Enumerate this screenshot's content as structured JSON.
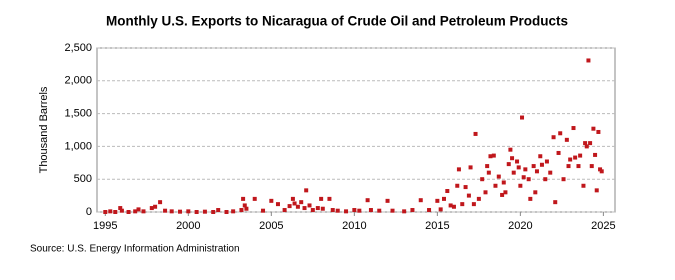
{
  "chart_data": {
    "type": "scatter",
    "title": "Monthly U.S. Exports to Nicaragua of Crude Oil and Petroleum Products",
    "y_label": "Thousand Barrels",
    "source": "Source: U.S. Energy Information Administration",
    "color": "#c0171c",
    "grid": true,
    "xlim": [
      1994.5,
      2025.7
    ],
    "ylim": [
      0,
      2500
    ],
    "xticks": [
      1995,
      2000,
      2005,
      2010,
      2015,
      2020,
      2025
    ],
    "yticks": [
      0,
      {
        "value": 500,
        "label": "500"
      },
      {
        "value": 1000,
        "label": "1,000"
      },
      {
        "value": 1500,
        "label": "1,500"
      },
      {
        "value": 2000,
        "label": "2,000"
      },
      {
        "value": 2500,
        "label": "2,500"
      }
    ],
    "x": [
      1995.0,
      1995.3,
      1995.6,
      1995.9,
      1996.0,
      1996.4,
      1996.8,
      1997.0,
      1997.3,
      1997.8,
      1998.0,
      1998.3,
      1998.6,
      1999.0,
      1999.5,
      2000.0,
      2000.5,
      2001.0,
      2001.5,
      2001.8,
      2002.3,
      2002.7,
      2003.2,
      2003.3,
      2003.4,
      2003.5,
      2004.0,
      2004.5,
      2005.0,
      2005.4,
      2005.8,
      2006.1,
      2006.3,
      2006.4,
      2006.6,
      2006.8,
      2007.0,
      2007.1,
      2007.3,
      2007.5,
      2007.8,
      2008.0,
      2008.1,
      2008.5,
      2008.7,
      2009.0,
      2009.5,
      2010.0,
      2010.3,
      2010.8,
      2011.0,
      2011.5,
      2012.0,
      2012.3,
      2013.0,
      2013.5,
      2014.0,
      2014.5,
      2015.0,
      2015.2,
      2015.4,
      2015.6,
      2015.8,
      2016.0,
      2016.2,
      2016.3,
      2016.5,
      2016.7,
      2016.9,
      2017.0,
      2017.2,
      2017.3,
      2017.5,
      2017.7,
      2017.9,
      2018.0,
      2018.1,
      2018.2,
      2018.4,
      2018.5,
      2018.7,
      2018.9,
      2019.0,
      2019.1,
      2019.3,
      2019.4,
      2019.5,
      2019.6,
      2019.8,
      2019.9,
      2020.0,
      2020.1,
      2020.2,
      2020.3,
      2020.5,
      2020.6,
      2020.8,
      2020.9,
      2021.0,
      2021.2,
      2021.3,
      2021.5,
      2021.6,
      2021.8,
      2022.0,
      2022.1,
      2022.3,
      2022.4,
      2022.6,
      2022.8,
      2022.9,
      2023.0,
      2023.2,
      2023.3,
      2023.5,
      2023.6,
      2023.8,
      2023.9,
      2024.0,
      2024.1,
      2024.2,
      2024.3,
      2024.4,
      2024.5,
      2024.6,
      2024.7,
      2024.8,
      2024.9
    ],
    "values": [
      0,
      10,
      0,
      60,
      20,
      0,
      10,
      40,
      10,
      60,
      80,
      150,
      20,
      10,
      5,
      10,
      0,
      5,
      0,
      30,
      0,
      10,
      30,
      200,
      100,
      50,
      200,
      20,
      170,
      120,
      30,
      90,
      200,
      130,
      80,
      150,
      60,
      330,
      100,
      30,
      60,
      200,
      50,
      200,
      30,
      20,
      10,
      30,
      20,
      180,
      30,
      20,
      170,
      20,
      10,
      30,
      180,
      30,
      170,
      40,
      200,
      320,
      100,
      80,
      400,
      650,
      120,
      380,
      250,
      680,
      120,
      1190,
      200,
      500,
      300,
      700,
      600,
      850,
      860,
      400,
      540,
      260,
      450,
      300,
      730,
      950,
      820,
      600,
      770,
      680,
      400,
      1440,
      530,
      650,
      500,
      200,
      700,
      300,
      620,
      850,
      720,
      500,
      770,
      600,
      1140,
      150,
      900,
      1200,
      500,
      1100,
      700,
      800,
      1280,
      830,
      700,
      860,
      400,
      1050,
      1000,
      2310,
      1050,
      700,
      1270,
      870,
      330,
      1220,
      650,
      620
    ]
  }
}
